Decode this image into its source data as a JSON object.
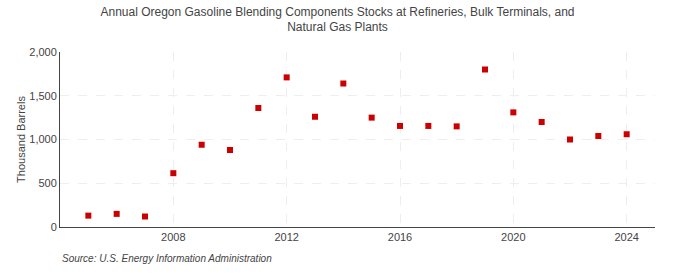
{
  "chart_data": {
    "type": "scatter",
    "title": "Annual Oregon Gasoline Blending Components Stocks at Refineries, Bulk Terminals, and\nNatural Gas Plants",
    "ylabel": "Thousand Barrels",
    "annotations": [
      "Source: U.S. Energy Information Administration"
    ],
    "x": [
      2005,
      2006,
      2007,
      2008,
      2009,
      2010,
      2011,
      2012,
      2013,
      2014,
      2015,
      2016,
      2017,
      2018,
      2019,
      2020,
      2021,
      2022,
      2023,
      2024
    ],
    "values": [
      130,
      150,
      120,
      615,
      940,
      880,
      1360,
      1710,
      1260,
      1640,
      1250,
      1155,
      1155,
      1150,
      1800,
      1310,
      1200,
      1000,
      1040,
      1060
    ],
    "color": "#cc0000",
    "marker": "square",
    "xlim": [
      2004,
      2025
    ],
    "xticks": [
      2008,
      2012,
      2016,
      2020,
      2024
    ],
    "ylim": [
      0,
      2000
    ],
    "yticks": [
      0,
      500,
      {
        "value": 1000,
        "label": "1,000"
      },
      {
        "value": 1500,
        "label": "1,500"
      },
      {
        "value": 2000,
        "label": "2,000"
      }
    ],
    "grid": true
  }
}
